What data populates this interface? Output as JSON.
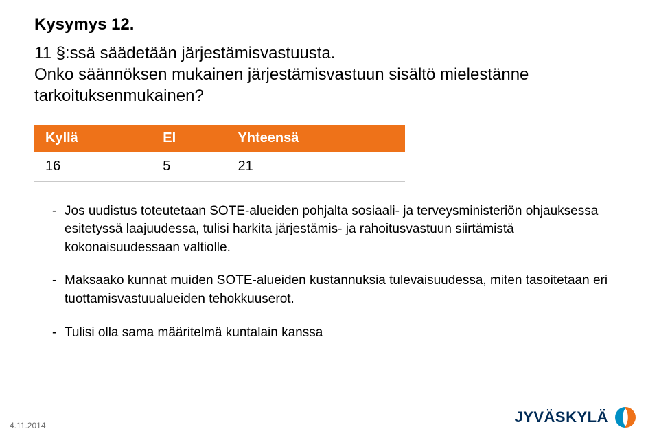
{
  "heading": "Kysymys 12.",
  "subtext": "11 §:ssä säädetään järjestämisvastuusta.\nOnko säännöksen mukainen järjestämisvastuun sisältö mielestänne tarkoituksenmukainen?",
  "table": {
    "header_bg": "#ee7219",
    "header_text_color": "#ffffff",
    "row_bg": "#ffffff",
    "border_color": "#c9c9c9",
    "columns": [
      "Kyllä",
      "EI",
      "Yhteensä"
    ],
    "rows": [
      [
        "16",
        "5",
        "21"
      ]
    ]
  },
  "bullets": [
    "Jos uudistus toteutetaan SOTE-alueiden pohjalta sosiaali- ja terveysministeriön ohjauksessa esitetyssä laajuudessa, tulisi harkita järjestämis- ja rahoitusvastuun siirtämistä kokonaisuudessaan valtiolle.",
    "Maksaako kunnat muiden SOTE-alueiden kustannuksia tulevaisuudessa, miten tasoitetaan eri tuottamisvastuualueiden tehokkuuserot.",
    "Tulisi olla sama määritelmä kuntalain kanssa"
  ],
  "footer": {
    "date": "4.11.2014",
    "logo_text": "JYVÄSKYLÄ",
    "logo_colors": {
      "left": "#008fc4",
      "right": "#ee7219",
      "text": "#002b56"
    }
  }
}
